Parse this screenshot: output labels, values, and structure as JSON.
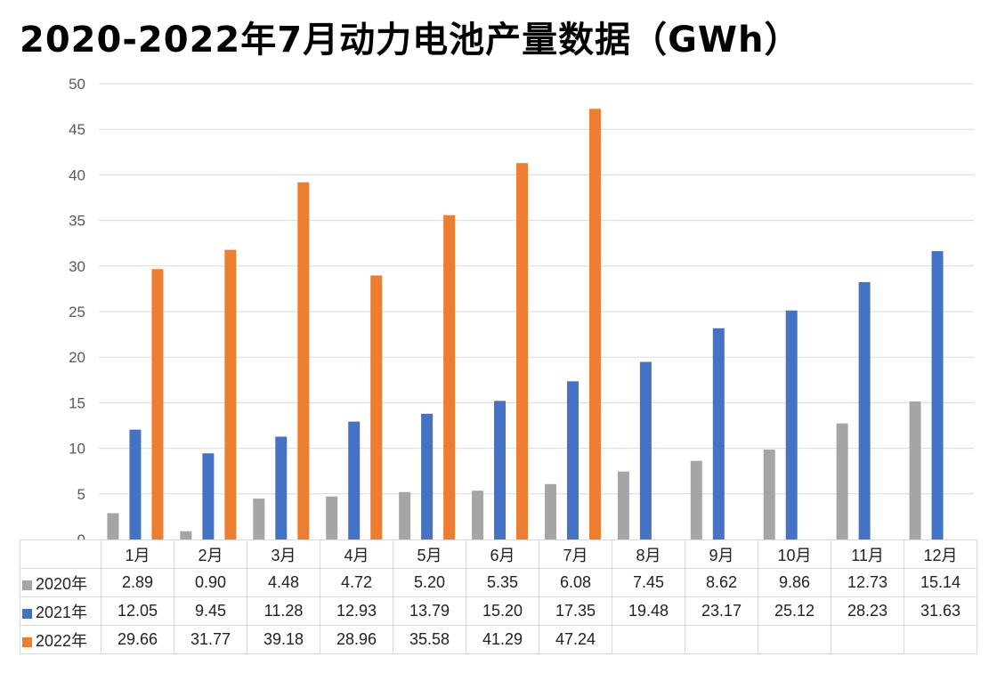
{
  "chart_data": {
    "type": "bar",
    "title": "2020-2022年7月动力电池产量数据（GWh）",
    "xlabel": "",
    "ylabel": "",
    "ylim": [
      0,
      50
    ],
    "yticks": [
      "0",
      "5",
      "10",
      "15",
      "20",
      "25",
      "30",
      "35",
      "40",
      "45",
      "50"
    ],
    "grid": true,
    "legend": "data-table",
    "categories": [
      "1月",
      "2月",
      "3月",
      "4月",
      "5月",
      "6月",
      "7月",
      "8月",
      "9月",
      "10月",
      "11月",
      "12月"
    ],
    "series": [
      {
        "name": "2020年",
        "color": "#A5A5A5",
        "values": [
          2.89,
          0.9,
          4.48,
          4.72,
          5.2,
          5.35,
          6.08,
          7.45,
          8.62,
          9.86,
          12.73,
          15.14
        ],
        "labels": [
          "2.89",
          "0.90",
          "4.48",
          "4.72",
          "5.20",
          "5.35",
          "6.08",
          "7.45",
          "8.62",
          "9.86",
          "12.73",
          "15.14"
        ]
      },
      {
        "name": "2021年",
        "color": "#4472C4",
        "values": [
          12.05,
          9.45,
          11.28,
          12.93,
          13.79,
          15.2,
          17.35,
          19.48,
          23.17,
          25.12,
          28.23,
          31.63
        ],
        "labels": [
          "12.05",
          "9.45",
          "11.28",
          "12.93",
          "13.79",
          "15.20",
          "17.35",
          "19.48",
          "23.17",
          "25.12",
          "28.23",
          "31.63"
        ]
      },
      {
        "name": "2022年",
        "color": "#ED7D31",
        "values": [
          29.66,
          31.77,
          39.18,
          28.96,
          35.58,
          41.29,
          47.24,
          null,
          null,
          null,
          null,
          null
        ],
        "labels": [
          "29.66",
          "31.77",
          "39.18",
          "28.96",
          "35.58",
          "41.29",
          "47.24",
          "",
          "",
          "",
          "",
          ""
        ]
      }
    ]
  }
}
